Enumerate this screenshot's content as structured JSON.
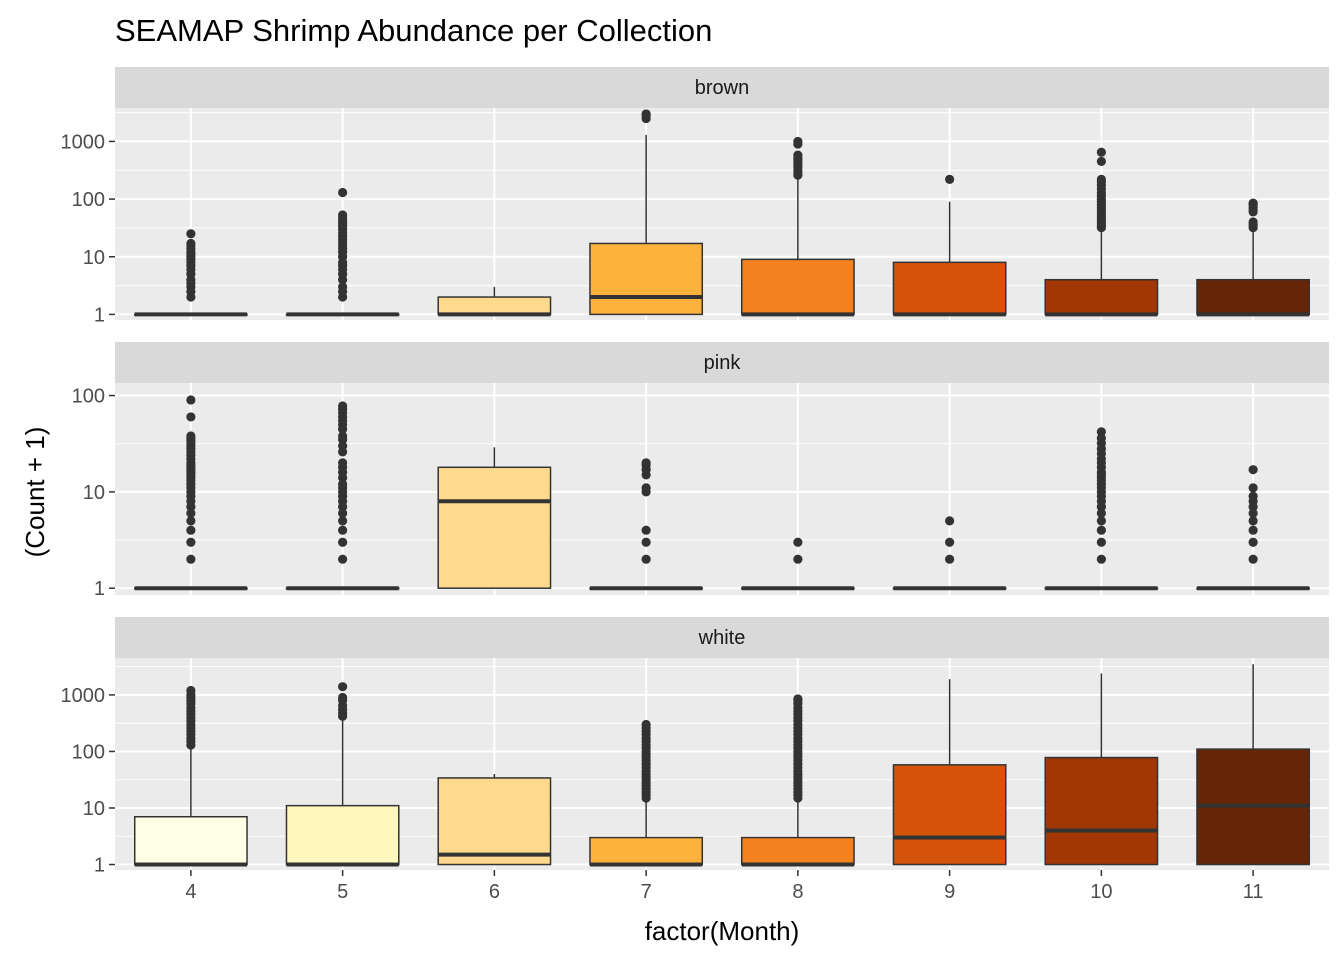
{
  "chart_data": {
    "type": "boxplot",
    "title": "SEAMAP Shrimp Abundance per Collection",
    "xlabel": "factor(Month)",
    "ylabel": "(Count + 1)",
    "y_scale": "log10",
    "categories": [
      "4",
      "5",
      "6",
      "7",
      "8",
      "9",
      "10",
      "11"
    ],
    "fill_colors": [
      "#FFFFE5",
      "#FFF7BC",
      "#FED98E",
      "#FEB23D",
      "#F4821F",
      "#D5530B",
      "#A13703",
      "#662506"
    ],
    "panel_background": "#EBEBEB",
    "strip_background": "#D9D9D9",
    "grid": true,
    "legend": "none",
    "panels": [
      {
        "label": "brown",
        "ylim": [
          0.8,
          3800
        ],
        "yticks": [
          1,
          10,
          100,
          1000
        ],
        "yticklabels": [
          "1",
          "10",
          "100",
          "1000"
        ],
        "boxes": [
          {
            "month": "4",
            "q1": 1,
            "median": 1,
            "q3": 1,
            "whisker_low": 1,
            "whisker_high": 1,
            "outliers": [
              2,
              2.5,
              3,
              3.5,
              4,
              5,
              6,
              7,
              8,
              9,
              10,
              11,
              12,
              14,
              16,
              17,
              25
            ]
          },
          {
            "month": "5",
            "q1": 1,
            "median": 1,
            "q3": 1,
            "whisker_low": 1,
            "whisker_high": 1,
            "outliers": [
              2,
              2.5,
              3,
              4,
              5,
              6,
              7,
              8,
              10,
              12,
              14,
              16,
              18,
              20,
              23,
              26,
              30,
              34,
              38,
              42,
              47,
              53,
              130
            ]
          },
          {
            "month": "6",
            "q1": 1,
            "median": 1,
            "q3": 2,
            "whisker_low": 1,
            "whisker_high": 3,
            "outliers": []
          },
          {
            "month": "7",
            "q1": 1,
            "median": 2,
            "q3": 17,
            "whisker_low": 1,
            "whisker_high": 1300,
            "outliers": [
              2500,
              2800,
              3000
            ]
          },
          {
            "month": "8",
            "q1": 1,
            "median": 1,
            "q3": 9,
            "whisker_low": 1,
            "whisker_high": 230,
            "outliers": [
              260,
              290,
              320,
              360,
              400,
              440,
              480,
              520,
              580,
              900,
              1000
            ]
          },
          {
            "month": "9",
            "q1": 1,
            "median": 1,
            "q3": 8,
            "whisker_low": 1,
            "whisker_high": 90,
            "outliers": [
              220
            ]
          },
          {
            "month": "10",
            "q1": 1,
            "median": 1,
            "q3": 4,
            "whisker_low": 1,
            "whisker_high": 30,
            "outliers": [
              32,
              35,
              38,
              42,
              46,
              50,
              55,
              60,
              66,
              72,
              80,
              90,
              100,
              115,
              130,
              150,
              175,
              200,
              220,
              450,
              650
            ]
          },
          {
            "month": "11",
            "q1": 1,
            "median": 1,
            "q3": 4,
            "whisker_low": 1,
            "whisker_high": 30,
            "outliers": [
              32,
              36,
              40,
              60,
              65,
              72,
              80,
              85
            ]
          }
        ]
      },
      {
        "label": "pink",
        "ylim": [
          0.85,
          135
        ],
        "yticks": [
          1,
          10,
          100
        ],
        "yticklabels": [
          "1",
          "10",
          "100"
        ],
        "boxes": [
          {
            "month": "4",
            "q1": 1,
            "median": 1,
            "q3": 1,
            "whisker_low": 1,
            "whisker_high": 1,
            "outliers": [
              2,
              3,
              4,
              5,
              6,
              7,
              8,
              9,
              10,
              11,
              12,
              13,
              14,
              15,
              16,
              17,
              18,
              19,
              20,
              22,
              24,
              26,
              28,
              30,
              32,
              34,
              36,
              38,
              60,
              90
            ]
          },
          {
            "month": "5",
            "q1": 1,
            "median": 1,
            "q3": 1,
            "whisker_low": 1,
            "whisker_high": 1,
            "outliers": [
              2,
              3,
              4,
              5,
              6,
              7,
              8,
              9,
              10,
              11,
              12,
              14,
              16,
              18,
              20,
              26,
              30,
              35,
              38,
              45,
              50,
              55,
              60,
              66,
              72,
              78
            ]
          },
          {
            "month": "6",
            "q1": 1,
            "median": 8,
            "q3": 18,
            "whisker_low": 1,
            "whisker_high": 29,
            "outliers": []
          },
          {
            "month": "7",
            "q1": 1,
            "median": 1,
            "q3": 1,
            "whisker_low": 1,
            "whisker_high": 1,
            "outliers": [
              2,
              3,
              4,
              10,
              11,
              15,
              17,
              19,
              20
            ]
          },
          {
            "month": "8",
            "q1": 1,
            "median": 1,
            "q3": 1,
            "whisker_low": 1,
            "whisker_high": 1,
            "outliers": [
              2,
              3
            ]
          },
          {
            "month": "9",
            "q1": 1,
            "median": 1,
            "q3": 1,
            "whisker_low": 1,
            "whisker_high": 1,
            "outliers": [
              2,
              3,
              5
            ]
          },
          {
            "month": "10",
            "q1": 1,
            "median": 1,
            "q3": 1,
            "whisker_low": 1,
            "whisker_high": 1,
            "outliers": [
              2,
              3,
              4,
              5,
              6,
              7,
              8,
              9,
              10,
              11,
              12,
              13,
              14,
              15,
              16,
              18,
              20,
              22,
              25,
              28,
              32,
              36,
              42
            ]
          },
          {
            "month": "11",
            "q1": 1,
            "median": 1,
            "q3": 1,
            "whisker_low": 1,
            "whisker_high": 1,
            "outliers": [
              2,
              3,
              4,
              5,
              6,
              7,
              8,
              9,
              11,
              17
            ]
          }
        ]
      },
      {
        "label": "white",
        "ylim": [
          0.8,
          4500
        ],
        "yticks": [
          1,
          10,
          100,
          1000
        ],
        "yticklabels": [
          "1",
          "10",
          "100",
          "1000"
        ],
        "boxes": [
          {
            "month": "4",
            "q1": 1,
            "median": 1,
            "q3": 7,
            "whisker_low": 1,
            "whisker_high": 120,
            "outliers": [
              130,
              150,
              170,
              200,
              230,
              260,
              300,
              350,
              400,
              460,
              520,
              600,
              700,
              800,
              900,
              1000,
              1200
            ]
          },
          {
            "month": "5",
            "q1": 1,
            "median": 1,
            "q3": 11,
            "whisker_low": 1,
            "whisker_high": 380,
            "outliers": [
              420,
              480,
              550,
              650,
              800,
              900,
              1400
            ]
          },
          {
            "month": "6",
            "q1": 1,
            "median": 1.5,
            "q3": 34,
            "whisker_low": 1,
            "whisker_high": 40,
            "outliers": []
          },
          {
            "month": "7",
            "q1": 1,
            "median": 1,
            "q3": 3,
            "whisker_low": 1,
            "whisker_high": 14,
            "outliers": [
              15,
              17,
              19,
              22,
              25,
              28,
              32,
              36,
              40,
              45,
              52,
              60,
              70,
              80,
              90,
              100,
              115,
              130,
              150,
              170,
              200,
              230,
              260,
              300
            ]
          },
          {
            "month": "8",
            "q1": 1,
            "median": 1,
            "q3": 3,
            "whisker_low": 1,
            "whisker_high": 14,
            "outliers": [
              15,
              17,
              19,
              22,
              25,
              28,
              32,
              36,
              40,
              45,
              52,
              60,
              70,
              80,
              90,
              100,
              115,
              130,
              150,
              170,
              200,
              230,
              260,
              300,
              350,
              400,
              460,
              520,
              600,
              700,
              800,
              850
            ]
          },
          {
            "month": "9",
            "q1": 1,
            "median": 3,
            "q3": 58,
            "whisker_low": 1,
            "whisker_high": 1900,
            "outliers": []
          },
          {
            "month": "10",
            "q1": 1,
            "median": 4,
            "q3": 78,
            "whisker_low": 1,
            "whisker_high": 2400,
            "outliers": []
          },
          {
            "month": "11",
            "q1": 1,
            "median": 11,
            "q3": 110,
            "whisker_low": 1,
            "whisker_high": 3500,
            "outliers": []
          }
        ]
      }
    ]
  }
}
